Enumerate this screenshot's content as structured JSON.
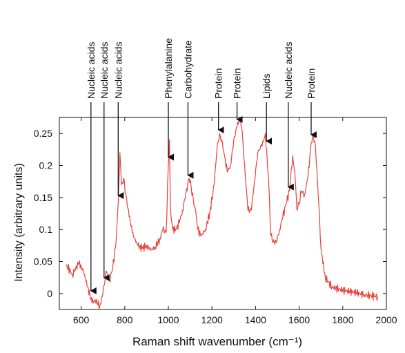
{
  "chart_data": {
    "type": "line",
    "title": "",
    "xlabel": "Raman shift wavenumber (cm⁻¹)",
    "ylabel": "Intensity (arbitrary units)",
    "xlim": [
      500,
      2000
    ],
    "ylim": [
      -0.025,
      0.275
    ],
    "x_ticks": [
      600,
      800,
      1000,
      1200,
      1400,
      1600,
      1800,
      2000
    ],
    "x_tick_labels": [
      "600",
      "800",
      "1000",
      "1200",
      "1400",
      "1600",
      "1800",
      "2000"
    ],
    "y_ticks": [
      0,
      0.05,
      0.1,
      0.15,
      0.2,
      0.25
    ],
    "y_tick_labels": [
      "0",
      "0.05",
      "0.1",
      "0.15",
      "0.2",
      "0.25"
    ],
    "grid": false,
    "legend": "none",
    "series": [
      {
        "color": "#e8413a",
        "x": [
          530,
          560,
          590,
          610,
          630,
          650,
          665,
          685,
          700,
          715,
          730,
          745,
          760,
          770,
          778,
          785,
          795,
          805,
          820,
          840,
          860,
          880,
          900,
          920,
          940,
          960,
          975,
          990,
          1000,
          1005,
          1010,
          1020,
          1035,
          1050,
          1065,
          1080,
          1095,
          1105,
          1115,
          1125,
          1135,
          1150,
          1170,
          1190,
          1210,
          1225,
          1235,
          1245,
          1255,
          1270,
          1285,
          1300,
          1315,
          1330,
          1340,
          1350,
          1365,
          1380,
          1395,
          1410,
          1420,
          1430,
          1445,
          1460,
          1470,
          1480,
          1495,
          1510,
          1525,
          1540,
          1555,
          1570,
          1580,
          1590,
          1600,
          1610,
          1625,
          1640,
          1655,
          1665,
          1675,
          1690,
          1700,
          1720,
          1750,
          1800,
          1850,
          1900,
          1960
        ],
        "y": [
          0.045,
          0.03,
          0.048,
          0.035,
          0.01,
          -0.015,
          -0.01,
          -0.02,
          0.0,
          0.035,
          0.02,
          0.04,
          0.08,
          0.14,
          0.22,
          0.17,
          0.18,
          0.155,
          0.12,
          0.09,
          0.075,
          0.07,
          0.075,
          0.068,
          0.072,
          0.085,
          0.1,
          0.095,
          0.2,
          0.24,
          0.13,
          0.1,
          0.1,
          0.11,
          0.13,
          0.155,
          0.18,
          0.165,
          0.145,
          0.13,
          0.1,
          0.09,
          0.1,
          0.125,
          0.17,
          0.235,
          0.25,
          0.24,
          0.22,
          0.19,
          0.2,
          0.24,
          0.26,
          0.275,
          0.25,
          0.2,
          0.13,
          0.13,
          0.175,
          0.22,
          0.225,
          0.23,
          0.25,
          0.175,
          0.09,
          0.08,
          0.08,
          0.1,
          0.12,
          0.14,
          0.16,
          0.215,
          0.19,
          0.13,
          0.14,
          0.16,
          0.155,
          0.18,
          0.235,
          0.25,
          0.23,
          0.14,
          0.07,
          0.025,
          0.01,
          0.005,
          0.002,
          -0.002,
          -0.005
        ]
      }
    ],
    "annotations": [
      {
        "text": "Nucleic acids",
        "x": 645
      },
      {
        "text": "Nucleic acids",
        "x": 705
      },
      {
        "text": "Nucleic acids",
        "x": 770
      },
      {
        "text": "Phenylalanine",
        "x": 1000
      },
      {
        "text": "Carbohydrate",
        "x": 1090
      },
      {
        "text": "Protein",
        "x": 1230
      },
      {
        "text": "Protein",
        "x": 1315
      },
      {
        "text": "Lipids",
        "x": 1450
      },
      {
        "text": "Nucleic acids",
        "x": 1550
      },
      {
        "text": "Protein",
        "x": 1655
      }
    ]
  }
}
